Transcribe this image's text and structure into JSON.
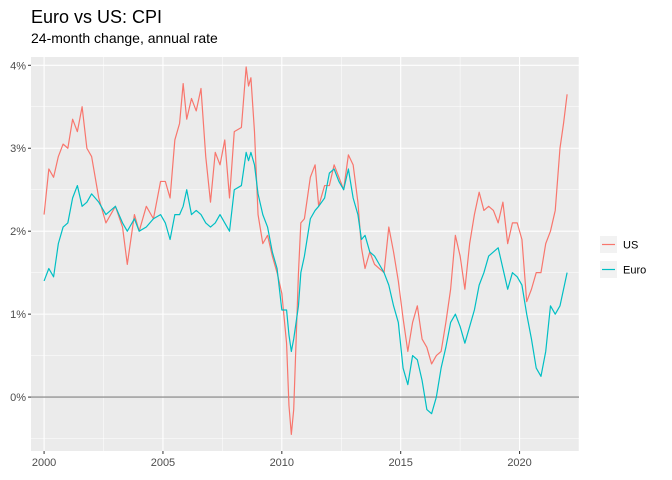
{
  "chart_data": {
    "type": "line",
    "title": "Euro vs US: CPI",
    "subtitle": "24-month change, annual rate",
    "xlabel": "",
    "ylabel": "",
    "xlim": [
      1999.45,
      2022.5
    ],
    "ylim": [
      -0.65,
      4.1
    ],
    "x_ticks": [
      2000,
      2005,
      2010,
      2015,
      2020
    ],
    "x_tick_labels": [
      "2000",
      "2005",
      "2010",
      "2015",
      "2020"
    ],
    "y_ticks": [
      0,
      1,
      2,
      3,
      4
    ],
    "y_tick_labels": [
      "0%",
      "1%",
      "2%",
      "3%",
      "4%"
    ],
    "reference_line": 0,
    "legend_position": "right",
    "series": [
      {
        "name": "US",
        "color": "#F8766D",
        "points": [
          [
            2000.0,
            2.2
          ],
          [
            2000.2,
            2.75
          ],
          [
            2000.4,
            2.65
          ],
          [
            2000.6,
            2.9
          ],
          [
            2000.8,
            3.05
          ],
          [
            2001.0,
            3.0
          ],
          [
            2001.2,
            3.35
          ],
          [
            2001.4,
            3.2
          ],
          [
            2001.6,
            3.5
          ],
          [
            2001.8,
            3.0
          ],
          [
            2002.0,
            2.9
          ],
          [
            2002.3,
            2.4
          ],
          [
            2002.6,
            2.1
          ],
          [
            2003.0,
            2.3
          ],
          [
            2003.3,
            2.05
          ],
          [
            2003.5,
            1.6
          ],
          [
            2003.8,
            2.2
          ],
          [
            2004.0,
            2.0
          ],
          [
            2004.3,
            2.3
          ],
          [
            2004.6,
            2.15
          ],
          [
            2004.9,
            2.6
          ],
          [
            2005.1,
            2.6
          ],
          [
            2005.3,
            2.4
          ],
          [
            2005.5,
            3.1
          ],
          [
            2005.7,
            3.3
          ],
          [
            2005.85,
            3.78
          ],
          [
            2006.0,
            3.35
          ],
          [
            2006.2,
            3.6
          ],
          [
            2006.4,
            3.45
          ],
          [
            2006.6,
            3.72
          ],
          [
            2006.8,
            2.9
          ],
          [
            2007.0,
            2.35
          ],
          [
            2007.2,
            2.95
          ],
          [
            2007.4,
            2.8
          ],
          [
            2007.6,
            3.1
          ],
          [
            2007.8,
            2.4
          ],
          [
            2008.0,
            3.2
          ],
          [
            2008.3,
            3.25
          ],
          [
            2008.5,
            3.98
          ],
          [
            2008.6,
            3.75
          ],
          [
            2008.7,
            3.85
          ],
          [
            2008.85,
            3.2
          ],
          [
            2009.0,
            2.2
          ],
          [
            2009.2,
            1.85
          ],
          [
            2009.4,
            1.95
          ],
          [
            2009.6,
            1.7
          ],
          [
            2009.8,
            1.5
          ],
          [
            2010.0,
            1.25
          ],
          [
            2010.2,
            0.65
          ],
          [
            2010.3,
            -0.1
          ],
          [
            2010.4,
            -0.45
          ],
          [
            2010.5,
            -0.15
          ],
          [
            2010.7,
            1.5
          ],
          [
            2010.8,
            2.1
          ],
          [
            2010.95,
            2.15
          ],
          [
            2011.2,
            2.65
          ],
          [
            2011.4,
            2.8
          ],
          [
            2011.55,
            2.3
          ],
          [
            2011.8,
            2.55
          ],
          [
            2012.0,
            2.55
          ],
          [
            2012.2,
            2.8
          ],
          [
            2012.4,
            2.65
          ],
          [
            2012.6,
            2.5
          ],
          [
            2012.8,
            2.92
          ],
          [
            2013.0,
            2.8
          ],
          [
            2013.2,
            2.35
          ],
          [
            2013.35,
            1.8
          ],
          [
            2013.5,
            1.55
          ],
          [
            2013.7,
            1.75
          ],
          [
            2013.9,
            1.6
          ],
          [
            2014.1,
            1.55
          ],
          [
            2014.3,
            1.5
          ],
          [
            2014.5,
            2.05
          ],
          [
            2014.7,
            1.75
          ],
          [
            2014.9,
            1.4
          ],
          [
            2015.1,
            0.95
          ],
          [
            2015.3,
            0.55
          ],
          [
            2015.5,
            0.9
          ],
          [
            2015.7,
            1.1
          ],
          [
            2015.9,
            0.7
          ],
          [
            2016.1,
            0.6
          ],
          [
            2016.3,
            0.4
          ],
          [
            2016.5,
            0.5
          ],
          [
            2016.7,
            0.55
          ],
          [
            2016.9,
            0.9
          ],
          [
            2017.1,
            1.3
          ],
          [
            2017.3,
            1.95
          ],
          [
            2017.5,
            1.7
          ],
          [
            2017.7,
            1.3
          ],
          [
            2017.9,
            1.85
          ],
          [
            2018.1,
            2.2
          ],
          [
            2018.3,
            2.47
          ],
          [
            2018.5,
            2.25
          ],
          [
            2018.7,
            2.3
          ],
          [
            2018.9,
            2.25
          ],
          [
            2019.1,
            2.1
          ],
          [
            2019.3,
            2.35
          ],
          [
            2019.5,
            1.85
          ],
          [
            2019.7,
            2.1
          ],
          [
            2019.9,
            2.1
          ],
          [
            2020.1,
            1.9
          ],
          [
            2020.3,
            1.15
          ],
          [
            2020.5,
            1.3
          ],
          [
            2020.7,
            1.5
          ],
          [
            2020.9,
            1.5
          ],
          [
            2021.1,
            1.85
          ],
          [
            2021.3,
            2.0
          ],
          [
            2021.5,
            2.25
          ],
          [
            2021.7,
            3.0
          ],
          [
            2021.85,
            3.3
          ],
          [
            2022.0,
            3.65
          ]
        ]
      },
      {
        "name": "Euro",
        "color": "#00BFC4",
        "points": [
          [
            2000.0,
            1.4
          ],
          [
            2000.2,
            1.55
          ],
          [
            2000.4,
            1.45
          ],
          [
            2000.6,
            1.85
          ],
          [
            2000.8,
            2.05
          ],
          [
            2001.0,
            2.1
          ],
          [
            2001.2,
            2.4
          ],
          [
            2001.4,
            2.55
          ],
          [
            2001.6,
            2.3
          ],
          [
            2001.8,
            2.35
          ],
          [
            2002.0,
            2.45
          ],
          [
            2002.3,
            2.35
          ],
          [
            2002.6,
            2.2
          ],
          [
            2003.0,
            2.3
          ],
          [
            2003.3,
            2.1
          ],
          [
            2003.5,
            2.0
          ],
          [
            2003.8,
            2.15
          ],
          [
            2004.0,
            2.0
          ],
          [
            2004.3,
            2.05
          ],
          [
            2004.6,
            2.15
          ],
          [
            2004.9,
            2.2
          ],
          [
            2005.1,
            2.1
          ],
          [
            2005.3,
            1.9
          ],
          [
            2005.5,
            2.2
          ],
          [
            2005.7,
            2.2
          ],
          [
            2005.85,
            2.3
          ],
          [
            2006.0,
            2.5
          ],
          [
            2006.2,
            2.2
          ],
          [
            2006.4,
            2.25
          ],
          [
            2006.6,
            2.2
          ],
          [
            2006.8,
            2.1
          ],
          [
            2007.0,
            2.05
          ],
          [
            2007.2,
            2.1
          ],
          [
            2007.4,
            2.2
          ],
          [
            2007.6,
            2.1
          ],
          [
            2007.8,
            2.0
          ],
          [
            2008.0,
            2.5
          ],
          [
            2008.3,
            2.55
          ],
          [
            2008.5,
            2.95
          ],
          [
            2008.6,
            2.85
          ],
          [
            2008.7,
            2.95
          ],
          [
            2008.85,
            2.8
          ],
          [
            2009.0,
            2.45
          ],
          [
            2009.2,
            2.2
          ],
          [
            2009.4,
            2.05
          ],
          [
            2009.6,
            1.75
          ],
          [
            2009.8,
            1.55
          ],
          [
            2010.0,
            1.05
          ],
          [
            2010.2,
            1.05
          ],
          [
            2010.3,
            0.75
          ],
          [
            2010.4,
            0.55
          ],
          [
            2010.5,
            0.7
          ],
          [
            2010.7,
            1.1
          ],
          [
            2010.8,
            1.5
          ],
          [
            2010.95,
            1.7
          ],
          [
            2011.2,
            2.15
          ],
          [
            2011.4,
            2.25
          ],
          [
            2011.55,
            2.3
          ],
          [
            2011.8,
            2.4
          ],
          [
            2012.0,
            2.7
          ],
          [
            2012.2,
            2.75
          ],
          [
            2012.4,
            2.6
          ],
          [
            2012.6,
            2.5
          ],
          [
            2012.8,
            2.75
          ],
          [
            2013.0,
            2.4
          ],
          [
            2013.2,
            2.2
          ],
          [
            2013.35,
            1.9
          ],
          [
            2013.5,
            1.95
          ],
          [
            2013.7,
            1.75
          ],
          [
            2013.9,
            1.7
          ],
          [
            2014.1,
            1.6
          ],
          [
            2014.3,
            1.5
          ],
          [
            2014.5,
            1.35
          ],
          [
            2014.7,
            1.1
          ],
          [
            2014.9,
            0.9
          ],
          [
            2015.1,
            0.35
          ],
          [
            2015.3,
            0.15
          ],
          [
            2015.5,
            0.5
          ],
          [
            2015.7,
            0.45
          ],
          [
            2015.9,
            0.2
          ],
          [
            2016.1,
            -0.15
          ],
          [
            2016.3,
            -0.2
          ],
          [
            2016.5,
            0.0
          ],
          [
            2016.7,
            0.35
          ],
          [
            2016.9,
            0.6
          ],
          [
            2017.1,
            0.9
          ],
          [
            2017.3,
            1.0
          ],
          [
            2017.5,
            0.85
          ],
          [
            2017.7,
            0.65
          ],
          [
            2017.9,
            0.85
          ],
          [
            2018.1,
            1.05
          ],
          [
            2018.3,
            1.35
          ],
          [
            2018.5,
            1.5
          ],
          [
            2018.7,
            1.7
          ],
          [
            2018.9,
            1.75
          ],
          [
            2019.1,
            1.8
          ],
          [
            2019.3,
            1.55
          ],
          [
            2019.5,
            1.3
          ],
          [
            2019.7,
            1.5
          ],
          [
            2019.9,
            1.45
          ],
          [
            2020.1,
            1.35
          ],
          [
            2020.3,
            1.0
          ],
          [
            2020.5,
            0.7
          ],
          [
            2020.7,
            0.35
          ],
          [
            2020.9,
            0.25
          ],
          [
            2021.1,
            0.55
          ],
          [
            2021.3,
            1.1
          ],
          [
            2021.5,
            1.0
          ],
          [
            2021.7,
            1.1
          ],
          [
            2021.85,
            1.3
          ],
          [
            2022.0,
            1.5
          ]
        ]
      }
    ]
  }
}
